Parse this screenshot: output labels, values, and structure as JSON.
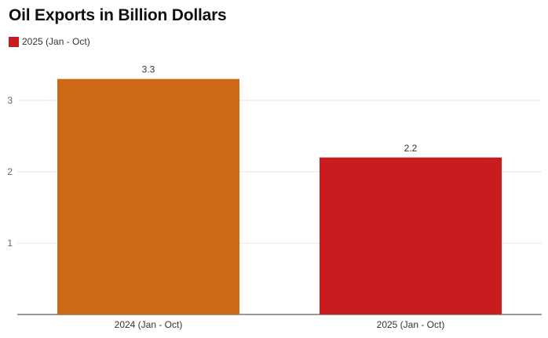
{
  "chart_data": {
    "type": "bar",
    "title": "Oil Exports in Billion Dollars",
    "categories": [
      "2024 (Jan - Oct)",
      "2025 (Jan - Oct)"
    ],
    "values": [
      3.3,
      2.2
    ],
    "data_labels": [
      "3.3",
      "2.2"
    ],
    "bar_colors": [
      "#cd6817",
      "#c91c1f"
    ],
    "legend": [
      {
        "name": "2025 (Jan - Oct)",
        "color": "#c91c1f"
      }
    ],
    "legend_position": "top-left",
    "yticks": [
      1,
      2,
      3
    ],
    "ytick_labels": [
      "1",
      "2",
      "3"
    ],
    "ylim": [
      0,
      3.3
    ],
    "grid": true,
    "xlabel": "",
    "ylabel": ""
  }
}
